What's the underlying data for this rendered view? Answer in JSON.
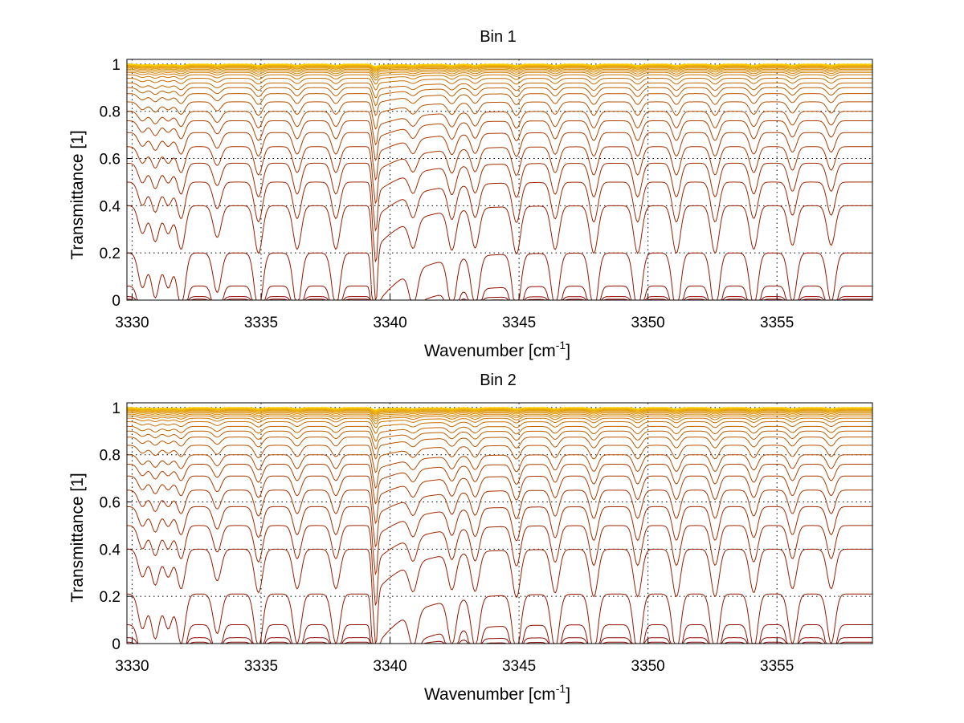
{
  "chart_data": [
    {
      "type": "line",
      "title": "Bin 1",
      "xlabel": {
        "main": "Wavenumber [cm",
        "sup": "-1",
        "close": "]"
      },
      "ylabel": "Transmittance [1]",
      "xlim": [
        3329.8,
        3358.7
      ],
      "ylim": [
        0,
        1.02
      ],
      "xticks": [
        "3330",
        "3335",
        "3340",
        "3345",
        "3350",
        "3355"
      ],
      "yticks": [
        "0",
        "0.2",
        "0.4",
        "0.6",
        "0.8",
        "1"
      ],
      "grid": true,
      "num_series": 30,
      "baseline_values": [
        1.0,
        0.999,
        0.998,
        0.997,
        0.996,
        0.995,
        0.993,
        0.99,
        0.987,
        0.983,
        0.978,
        0.972,
        0.965,
        0.955,
        0.94,
        0.92,
        0.9,
        0.875,
        0.84,
        0.8,
        0.76,
        0.71,
        0.65,
        0.58,
        0.5,
        0.4,
        0.2,
        0.06,
        0.015,
        0.004
      ],
      "line_centers": [
        3330.4,
        3330.9,
        3331.4,
        3331.9,
        3333.3,
        3334.9,
        3336.4,
        3337.9,
        3339.4,
        3340.9,
        3342.4,
        3343.3,
        3344.9,
        3346.4,
        3347.9,
        3349.6,
        3351.1,
        3352.6,
        3354.1,
        3355.6,
        3357.1
      ],
      "line_strengths": [
        0.35,
        0.45,
        0.35,
        0.55,
        0.4,
        0.6,
        0.55,
        0.55,
        1.0,
        0.35,
        0.5,
        0.5,
        0.6,
        0.55,
        0.6,
        0.6,
        0.6,
        0.6,
        0.55,
        0.5,
        0.5
      ],
      "colors": [
        "#8a0000",
        "#ffd200"
      ]
    },
    {
      "type": "line",
      "title": "Bin 2",
      "xlabel": {
        "main": "Wavenumber [cm",
        "sup": "-1",
        "close": "]"
      },
      "ylabel": "Transmittance [1]",
      "xlim": [
        3329.8,
        3358.7
      ],
      "ylim": [
        0,
        1.02
      ],
      "xticks": [
        "3330",
        "3335",
        "3340",
        "3345",
        "3350",
        "3355"
      ],
      "yticks": [
        "0",
        "0.2",
        "0.4",
        "0.6",
        "0.8",
        "1"
      ],
      "grid": true,
      "num_series": 30,
      "baseline_values": [
        1.0,
        0.999,
        0.998,
        0.997,
        0.996,
        0.995,
        0.993,
        0.99,
        0.987,
        0.983,
        0.978,
        0.972,
        0.965,
        0.955,
        0.94,
        0.92,
        0.9,
        0.875,
        0.84,
        0.8,
        0.76,
        0.71,
        0.65,
        0.58,
        0.5,
        0.4,
        0.21,
        0.08,
        0.025,
        0.006
      ],
      "line_centers": [
        3330.4,
        3330.9,
        3331.4,
        3331.9,
        3333.3,
        3334.9,
        3336.4,
        3337.9,
        3339.4,
        3340.9,
        3342.4,
        3343.3,
        3344.9,
        3346.4,
        3347.9,
        3349.6,
        3351.1,
        3352.6,
        3354.1,
        3355.6,
        3357.1
      ],
      "line_strengths": [
        0.35,
        0.45,
        0.35,
        0.5,
        0.4,
        0.55,
        0.5,
        0.5,
        1.0,
        0.35,
        0.45,
        0.5,
        0.6,
        0.55,
        0.6,
        0.6,
        0.6,
        0.6,
        0.55,
        0.5,
        0.5
      ],
      "colors": [
        "#8a0000",
        "#ffd200"
      ]
    }
  ]
}
